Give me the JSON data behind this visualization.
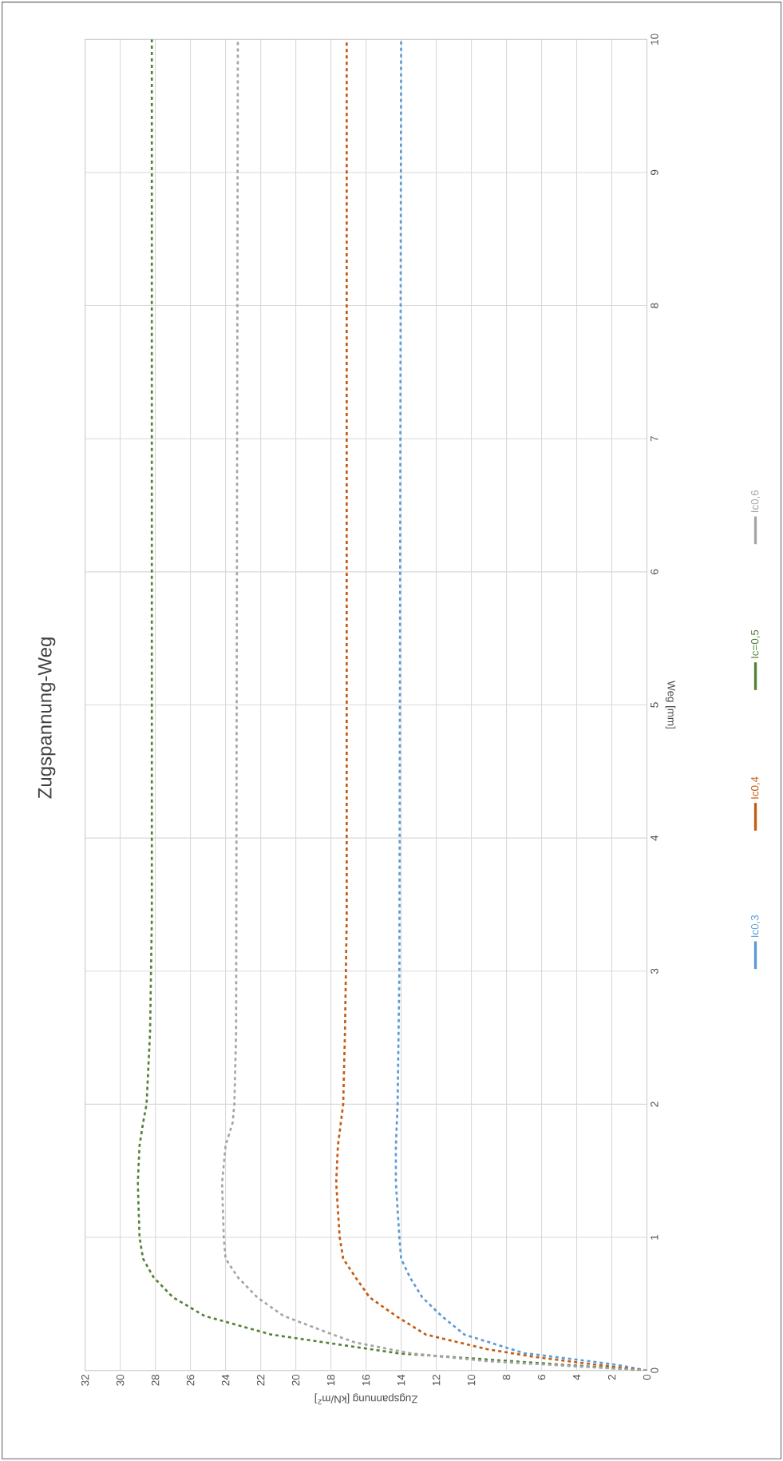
{
  "chart_data": {
    "type": "line",
    "title": "Zugspannung-Weg",
    "xlabel": "Zugspannung [kN/m$^{2}$]",
    "ylabel": "Weg [mm]",
    "xlim": [
      32,
      0
    ],
    "xticks": [
      0,
      2,
      4,
      6,
      8,
      10,
      12,
      14,
      16,
      18,
      20,
      22,
      24,
      26,
      28,
      30,
      32
    ],
    "ylim": [
      0,
      10
    ],
    "yticks": [
      0,
      1,
      2,
      3,
      4,
      5,
      6,
      7,
      8,
      9,
      10
    ],
    "grid": true,
    "legend": "right",
    "marker": "none",
    "series": [
      {
        "name": "Ic0,3",
        "color": "#5b9bd5",
        "line_style": "dashed",
        "values": [
          0,
          0.04,
          0.07,
          0.13,
          0.27,
          0.41,
          0.55,
          0.7,
          0.84,
          1.0,
          1.41,
          1.69,
          2.0,
          3.0,
          10
        ],
        "x": [
          0,
          1.6,
          3.3,
          7.0,
          10.4,
          11.7,
          12.8,
          13.5,
          14.0,
          14.1,
          14.3,
          14.3,
          14.2,
          14.1,
          14.0
        ]
      },
      {
        "name": "Ic0,4",
        "color": "#c55a11",
        "line_style": "dashed",
        "values": [
          0,
          0.04,
          0.1,
          0.16,
          0.27,
          0.41,
          0.55,
          0.7,
          0.84,
          1.0,
          1.41,
          1.69,
          2.0,
          2.54,
          3.4,
          10
        ],
        "x": [
          0,
          2.7,
          6.3,
          9.1,
          12.6,
          14.3,
          15.8,
          16.6,
          17.3,
          17.5,
          17.7,
          17.6,
          17.3,
          17.2,
          17.1,
          17.1
        ]
      },
      {
        "name": "Ic=0,5",
        "color": "#548235",
        "line_style": "dashed",
        "values": [
          0,
          0.128,
          0.27,
          0.41,
          0.55,
          0.7,
          0.84,
          1.0,
          1.41,
          1.69,
          1.86,
          2.0,
          2.54,
          3.4,
          10
        ],
        "x": [
          0,
          14.1,
          21.4,
          25.2,
          27.0,
          28.1,
          28.7,
          28.9,
          29.0,
          28.9,
          28.7,
          28.5,
          28.3,
          28.2,
          28.2
        ]
      },
      {
        "name": "Ic0,6",
        "color": "#a5a5a5",
        "line_style": "dashed",
        "values": [
          0,
          0.07,
          0.128,
          0.21,
          0.27,
          0.41,
          0.55,
          0.7,
          0.84,
          1.0,
          1.41,
          1.69,
          1.86,
          2.0,
          2.54,
          10
        ],
        "x": [
          0,
          9.1,
          13.4,
          16.6,
          17.9,
          20.7,
          22.2,
          23.3,
          24.0,
          24.1,
          24.2,
          24.0,
          23.6,
          23.5,
          23.4,
          23.3
        ]
      }
    ]
  }
}
